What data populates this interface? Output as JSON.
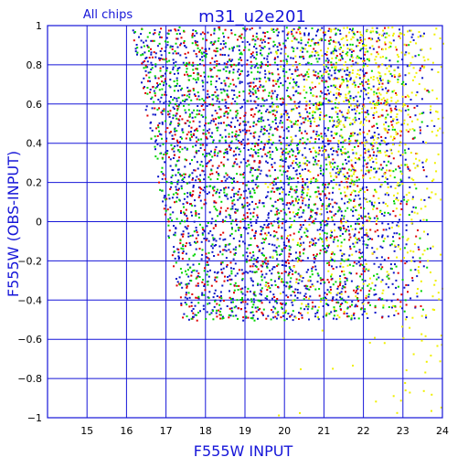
{
  "chart_data": {
    "type": "scatter",
    "title": "m31_u2e201",
    "subset_label": "All chips",
    "xlabel": "F555W INPUT",
    "ylabel": "F555W (OBS-INPUT)",
    "xlim": [
      14,
      24
    ],
    "ylim": [
      -1,
      1
    ],
    "xticks": [
      15,
      16,
      17,
      18,
      19,
      20,
      21,
      22,
      23,
      24
    ],
    "yticks": [
      -1,
      -0.8,
      -0.6,
      -0.4,
      -0.2,
      0,
      0.2,
      0.4,
      0.6,
      0.8,
      1
    ],
    "xtick_labels": [
      "15",
      "16",
      "17",
      "18",
      "19",
      "20",
      "21",
      "22",
      "23",
      "24"
    ],
    "ytick_labels": [
      "−1",
      "−0.8",
      "−0.6",
      "−0.4",
      "−0.2",
      "0",
      "0.2",
      "0.4",
      "0.6",
      "0.8",
      "1"
    ],
    "grid": true,
    "colors": {
      "axis": "#1515d8",
      "blue": "#0a14c8",
      "red": "#e00000",
      "green": "#00d400",
      "yellow": "#f0f000"
    },
    "series": [
      {
        "color_key": "blue",
        "density": 0.36,
        "region": {
          "x_min": 16.1,
          "x_max": 23.8,
          "y_min": -0.5,
          "y_max": 1.0,
          "left_edge": [
            [
              16.1,
              1.0
            ],
            [
              17.4,
              -0.5
            ]
          ]
        }
      },
      {
        "color_key": "red",
        "density": 0.18,
        "region": {
          "x_min": 16.1,
          "x_max": 23.6,
          "y_min": -0.5,
          "y_max": 1.0,
          "left_edge": [
            [
              16.1,
              1.0
            ],
            [
              17.4,
              -0.5
            ]
          ]
        }
      },
      {
        "color_key": "green",
        "density": 0.22,
        "region": {
          "x_min": 16.1,
          "x_max": 23.7,
          "y_min": -0.5,
          "y_max": 1.0,
          "left_edge": [
            [
              16.1,
              1.0
            ],
            [
              17.4,
              -0.5
            ]
          ]
        }
      },
      {
        "color_key": "yellow",
        "density": 0.24,
        "region": {
          "x_min": 19.5,
          "x_max": 24.0,
          "y_min": -1.0,
          "y_max": 1.0,
          "peak_x": 22.0,
          "peak_y": 0.8
        }
      }
    ]
  }
}
